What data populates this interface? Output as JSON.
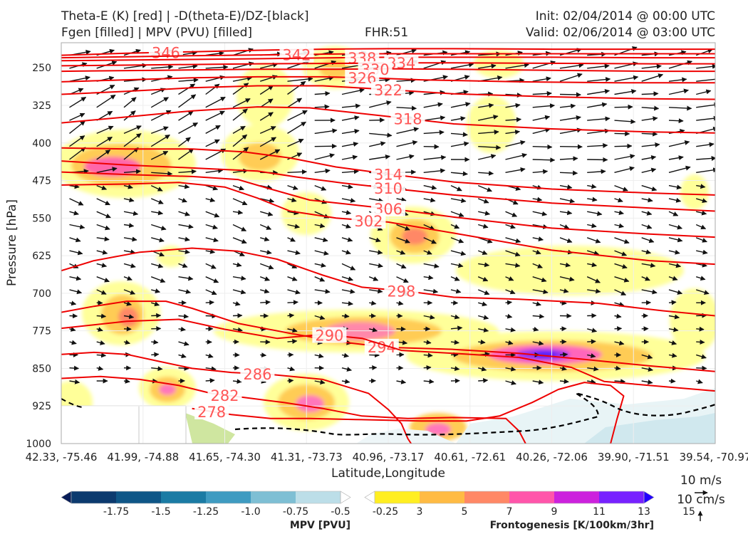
{
  "header": {
    "title_line1": "Theta-E (K) [red] | -D(theta-E)/DZ-[black]",
    "title_line2": "Fgen [filled] | MPV (PVU) [filled]",
    "fhr": "FHR:51",
    "init": "Init: 02/04/2014 @ 00:00 UTC",
    "valid": "Valid: 02/06/2014 @ 03:00 UTC"
  },
  "chart_data": {
    "type": "cross-section",
    "xlabel": "Latitude,Longitude",
    "ylabel": "Pressure [hPa]",
    "ylim": [
      1000,
      200
    ],
    "x_ticks": [
      "42.33, -75.46",
      "41.99, -74.88",
      "41.65, -74.30",
      "41.31, -73.73",
      "40.96, -73.17",
      "40.61, -72.61",
      "40.26, -72.06",
      "39.90, -71.51",
      "39.54, -70.97"
    ],
    "y_ticks": [
      250,
      325,
      400,
      475,
      550,
      625,
      700,
      775,
      850,
      925,
      1000
    ],
    "theta_e_color": "#ee0000",
    "theta_e_contours": [
      {
        "label": "346",
        "pts": [
          [
            0,
            225
          ],
          [
            0.1,
            221
          ],
          [
            0.2,
            218
          ],
          [
            0.3,
            215
          ],
          [
            0.4,
            213
          ],
          [
            0.5,
            212
          ],
          [
            0.6,
            212
          ],
          [
            0.75,
            213
          ],
          [
            0.9,
            213
          ],
          [
            1,
            213
          ]
        ]
      },
      {
        "label": "342",
        "pts": [
          [
            0,
            230
          ],
          [
            0.1,
            228
          ],
          [
            0.2,
            226
          ],
          [
            0.33,
            224
          ],
          [
            0.45,
            222
          ],
          [
            0.55,
            222
          ],
          [
            0.7,
            222
          ],
          [
            0.85,
            222
          ],
          [
            1,
            222
          ]
        ]
      },
      {
        "label": "338",
        "pts": [
          [
            0,
            236
          ],
          [
            0.15,
            234
          ],
          [
            0.3,
            232
          ],
          [
            0.42,
            230
          ],
          [
            0.5,
            229
          ],
          [
            0.6,
            229
          ],
          [
            0.75,
            229
          ],
          [
            0.9,
            230
          ],
          [
            1,
            230
          ]
        ]
      },
      {
        "label": "334",
        "pts": [
          [
            0,
            246
          ],
          [
            0.15,
            244
          ],
          [
            0.3,
            242
          ],
          [
            0.45,
            241
          ],
          [
            0.53,
            240
          ],
          [
            0.6,
            240
          ],
          [
            0.75,
            241
          ],
          [
            0.9,
            242
          ],
          [
            1,
            242
          ]
        ]
      },
      {
        "label": "330",
        "pts": [
          [
            0,
            257
          ],
          [
            0.15,
            255
          ],
          [
            0.3,
            253
          ],
          [
            0.42,
            253
          ],
          [
            0.5,
            252
          ],
          [
            0.6,
            253
          ],
          [
            0.75,
            255
          ],
          [
            0.9,
            257
          ],
          [
            1,
            257
          ]
        ]
      },
      {
        "label": "326",
        "pts": [
          [
            0,
            278
          ],
          [
            0.1,
            274
          ],
          [
            0.2,
            270
          ],
          [
            0.3,
            268
          ],
          [
            0.4,
            268
          ],
          [
            0.47,
            270
          ],
          [
            0.55,
            274
          ],
          [
            0.7,
            278
          ],
          [
            0.85,
            280
          ],
          [
            1,
            280
          ]
        ]
      },
      {
        "label": "322",
        "pts": [
          [
            0,
            303
          ],
          [
            0.1,
            297
          ],
          [
            0.2,
            290
          ],
          [
            0.3,
            286
          ],
          [
            0.4,
            286
          ],
          [
            0.48,
            292
          ],
          [
            0.6,
            302
          ],
          [
            0.75,
            308
          ],
          [
            0.9,
            312
          ],
          [
            1,
            313
          ]
        ]
      },
      {
        "label": "318",
        "pts": [
          [
            0,
            360
          ],
          [
            0.1,
            348
          ],
          [
            0.2,
            336
          ],
          [
            0.3,
            328
          ],
          [
            0.38,
            330
          ],
          [
            0.45,
            340
          ],
          [
            0.52,
            350
          ],
          [
            0.6,
            362
          ],
          [
            0.75,
            372
          ],
          [
            0.9,
            378
          ],
          [
            1,
            380
          ]
        ]
      },
      {
        "label": "314",
        "pts": [
          [
            0,
            410
          ],
          [
            0.1,
            412
          ],
          [
            0.2,
            412
          ],
          [
            0.28,
            418
          ],
          [
            0.35,
            430
          ],
          [
            0.42,
            448
          ],
          [
            0.5,
            462
          ],
          [
            0.6,
            478
          ],
          [
            0.75,
            492
          ],
          [
            0.9,
            500
          ],
          [
            1,
            504
          ]
        ]
      },
      {
        "label": "310",
        "pts": [
          [
            0,
            436
          ],
          [
            0.1,
            444
          ],
          [
            0.2,
            450
          ],
          [
            0.3,
            456
          ],
          [
            0.36,
            468
          ],
          [
            0.43,
            480
          ],
          [
            0.5,
            490
          ],
          [
            0.6,
            504
          ],
          [
            0.75,
            520
          ],
          [
            0.9,
            530
          ],
          [
            1,
            536
          ]
        ]
      },
      {
        "label": "306",
        "pts": [
          [
            0,
            458
          ],
          [
            0.1,
            463
          ],
          [
            0.2,
            467
          ],
          [
            0.27,
            473
          ],
          [
            0.32,
            492
          ],
          [
            0.38,
            514
          ],
          [
            0.45,
            524
          ],
          [
            0.52,
            534
          ],
          [
            0.6,
            548
          ],
          [
            0.75,
            570
          ],
          [
            0.9,
            582
          ],
          [
            1,
            588
          ]
        ]
      },
      {
        "label": "302",
        "pts": [
          [
            0,
            484
          ],
          [
            0.1,
            482
          ],
          [
            0.18,
            479
          ],
          [
            0.25,
            488
          ],
          [
            0.3,
            510
          ],
          [
            0.35,
            536
          ],
          [
            0.42,
            550
          ],
          [
            0.5,
            558
          ],
          [
            0.6,
            580
          ],
          [
            0.75,
            614
          ],
          [
            0.9,
            635
          ],
          [
            1,
            642
          ]
        ]
      },
      {
        "label": "298",
        "pts": [
          [
            0,
            655
          ],
          [
            0.05,
            635
          ],
          [
            0.12,
            618
          ],
          [
            0.2,
            610
          ],
          [
            0.27,
            616
          ],
          [
            0.33,
            632
          ],
          [
            0.4,
            664
          ],
          [
            0.46,
            688
          ],
          [
            0.53,
            696
          ],
          [
            0.6,
            708
          ],
          [
            0.7,
            712
          ],
          [
            0.82,
            720
          ],
          [
            0.92,
            735
          ],
          [
            1,
            745
          ]
        ]
      },
      {
        "label": "294",
        "pts": [
          [
            0,
            738
          ],
          [
            0.05,
            726
          ],
          [
            0.1,
            716
          ],
          [
            0.16,
            716
          ],
          [
            0.2,
            730
          ],
          [
            0.27,
            760
          ],
          [
            0.35,
            780
          ],
          [
            0.42,
            796
          ],
          [
            0.5,
            808
          ],
          [
            0.6,
            812
          ],
          [
            0.7,
            820
          ],
          [
            0.8,
            832
          ],
          [
            0.9,
            845
          ],
          [
            1,
            856
          ]
        ]
      },
      {
        "label": "290",
        "pts": [
          [
            0,
            770
          ],
          [
            0.1,
            756
          ],
          [
            0.18,
            752
          ],
          [
            0.25,
            772
          ],
          [
            0.33,
            790
          ],
          [
            0.4,
            782
          ],
          [
            0.46,
            790
          ],
          [
            0.52,
            814
          ],
          [
            0.6,
            820
          ],
          [
            0.7,
            828
          ],
          [
            0.78,
            848
          ],
          [
            0.83,
            876
          ],
          [
            0.9,
            884
          ],
          [
            1,
            895
          ]
        ]
      },
      {
        "label": "286",
        "pts": [
          [
            0,
            822
          ],
          [
            0.05,
            818
          ],
          [
            0.1,
            822
          ],
          [
            0.15,
            836
          ],
          [
            0.2,
            850
          ],
          [
            0.26,
            858
          ],
          [
            0.32,
            862
          ],
          [
            0.4,
            872
          ],
          [
            0.47,
            900
          ],
          [
            0.5,
            932
          ],
          [
            0.52,
            960
          ],
          [
            0.53,
            990
          ],
          [
            0.535,
            1000
          ]
        ]
      },
      {
        "label": "282",
        "pts": [
          [
            0,
            870
          ],
          [
            0.06,
            866
          ],
          [
            0.12,
            872
          ],
          [
            0.18,
            884
          ],
          [
            0.23,
            900
          ],
          [
            0.28,
            908
          ],
          [
            0.34,
            918
          ],
          [
            0.4,
            930
          ],
          [
            0.46,
            945
          ],
          [
            0.53,
            950
          ],
          [
            0.6,
            948
          ],
          [
            0.68,
            950
          ],
          [
            0.7,
            975
          ],
          [
            0.71,
            1000
          ]
        ]
      },
      {
        "label": "278",
        "pts": [
          [
            0.2,
            930
          ],
          [
            0.26,
            942
          ],
          [
            0.32,
            950
          ],
          [
            0.38,
            950
          ],
          [
            0.45,
            952
          ],
          [
            0.55,
            955
          ],
          [
            0.62,
            955
          ],
          [
            0.67,
            945
          ],
          [
            0.72,
            918
          ],
          [
            0.76,
            892
          ],
          [
            0.8,
            878
          ],
          [
            0.84,
            884
          ],
          [
            0.86,
            905
          ],
          [
            0.85,
            950
          ],
          [
            0.84,
            1000
          ]
        ]
      }
    ],
    "dthetae_dz_color": "#000000",
    "wind_vectors": "rendered field on regular grid",
    "mpv_colorbar": {
      "label": "MPV [PVU]",
      "ticks": [
        "-1.75",
        "-1.5",
        "-1.25",
        "-1.0",
        "-0.75",
        "-0.5",
        "-0.25"
      ],
      "colors": [
        "#081d58",
        "#0c3a6e",
        "#0f5687",
        "#1b7ba4",
        "#3f9bc1",
        "#7ebfd4",
        "#bcdee8",
        "#ffffff"
      ]
    },
    "fgen_colorbar": {
      "label": "Frontogenesis [K/100km/3hr]",
      "ticks": [
        "3",
        "5",
        "7",
        "9",
        "11",
        "13",
        "15"
      ],
      "colors": [
        "#ffffff",
        "#ffee22",
        "#ffbb44",
        "#ff8866",
        "#ff55aa",
        "#cc22dd",
        "#7722ff",
        "#2200ff"
      ]
    },
    "reference_vectors": [
      "10 m/s",
      "10 cm/s"
    ]
  }
}
